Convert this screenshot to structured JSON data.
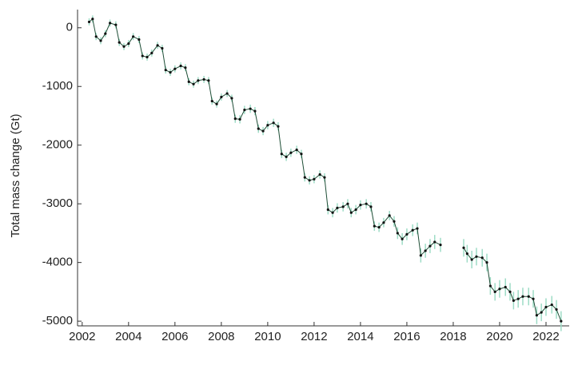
{
  "chart_data": {
    "type": "line",
    "ylabel": "Total mass change (Gt)",
    "x": [
      2002.3,
      2002.45,
      2002.6,
      2002.8,
      2003.0,
      2003.2,
      2003.45,
      2003.6,
      2003.8,
      2004.0,
      2004.2,
      2004.45,
      2004.6,
      2004.8,
      2005.0,
      2005.25,
      2005.45,
      2005.6,
      2005.8,
      2006.0,
      2006.25,
      2006.45,
      2006.6,
      2006.8,
      2007.0,
      2007.25,
      2007.45,
      2007.6,
      2007.8,
      2008.0,
      2008.25,
      2008.45,
      2008.6,
      2008.8,
      2009.0,
      2009.25,
      2009.45,
      2009.6,
      2009.8,
      2010.0,
      2010.25,
      2010.45,
      2010.6,
      2010.8,
      2011.0,
      2011.25,
      2011.45,
      2011.6,
      2011.8,
      2012.0,
      2012.25,
      2012.45,
      2012.6,
      2012.8,
      2013.0,
      2013.25,
      2013.45,
      2013.6,
      2013.8,
      2014.0,
      2014.25,
      2014.45,
      2014.6,
      2014.8,
      2015.0,
      2015.25,
      2015.45,
      2015.6,
      2015.8,
      2016.0,
      2016.25,
      2016.45,
      2016.6,
      2016.8,
      2017.0,
      2017.2,
      2017.45,
      2017.9,
      2018.45,
      2018.6,
      2018.8,
      2019.0,
      2019.25,
      2019.45,
      2019.6,
      2019.8,
      2020.0,
      2020.25,
      2020.45,
      2020.6,
      2020.8,
      2021.0,
      2021.25,
      2021.45,
      2021.6,
      2021.8,
      2022.0,
      2022.25,
      2022.45,
      2022.65
    ],
    "values": [
      100,
      150,
      -150,
      -220,
      -100,
      80,
      50,
      -250,
      -320,
      -270,
      -150,
      -200,
      -480,
      -500,
      -430,
      -300,
      -350,
      -720,
      -760,
      -700,
      -650,
      -680,
      -920,
      -960,
      -900,
      -880,
      -900,
      -1250,
      -1300,
      -1180,
      -1120,
      -1200,
      -1550,
      -1560,
      -1400,
      -1380,
      -1420,
      -1720,
      -1760,
      -1660,
      -1620,
      -1680,
      -2150,
      -2200,
      -2130,
      -2080,
      -2150,
      -2550,
      -2600,
      -2580,
      -2500,
      -2550,
      -3100,
      -3150,
      -3070,
      -3050,
      -3000,
      -3150,
      -3100,
      -3020,
      -3000,
      -3050,
      -3380,
      -3400,
      -3320,
      -3200,
      -3300,
      -3500,
      -3600,
      -3520,
      -3450,
      -3420,
      -3880,
      -3800,
      -3720,
      -3650,
      -3700,
      null,
      -3750,
      -3850,
      -3950,
      -3900,
      -3920,
      -4000,
      -4400,
      -4500,
      -4450,
      -4420,
      -4500,
      -4650,
      -4620,
      -4580,
      -4580,
      -4620,
      -4900,
      -4850,
      -4760,
      -4720,
      -4800,
      -5000
    ],
    "errors": [
      60,
      60,
      60,
      60,
      60,
      60,
      60,
      60,
      60,
      60,
      60,
      60,
      60,
      60,
      60,
      60,
      60,
      60,
      60,
      60,
      60,
      60,
      60,
      60,
      60,
      60,
      60,
      60,
      60,
      60,
      60,
      60,
      70,
      70,
      70,
      70,
      70,
      70,
      70,
      70,
      70,
      70,
      70,
      70,
      70,
      70,
      70,
      70,
      70,
      70,
      70,
      70,
      80,
      80,
      80,
      80,
      80,
      80,
      80,
      80,
      80,
      80,
      80,
      80,
      80,
      80,
      90,
      100,
      100,
      100,
      100,
      100,
      120,
      120,
      120,
      120,
      120,
      null,
      150,
      150,
      150,
      150,
      150,
      150,
      150,
      150,
      150,
      150,
      150,
      150,
      150,
      150,
      150,
      150,
      150,
      150,
      150,
      150,
      160,
      170
    ],
    "line_color": "#1d4d35",
    "marker_color": "#111111",
    "error_color": "#9edcc6",
    "xlim": [
      2001.8,
      2023.0
    ],
    "ylim": [
      -5080,
      310
    ],
    "xticks": [
      2002,
      2004,
      2006,
      2008,
      2010,
      2012,
      2014,
      2016,
      2018,
      2020,
      2022
    ],
    "yticks": [
      -5000,
      -4000,
      -3000,
      -2000,
      -1000,
      0
    ]
  }
}
